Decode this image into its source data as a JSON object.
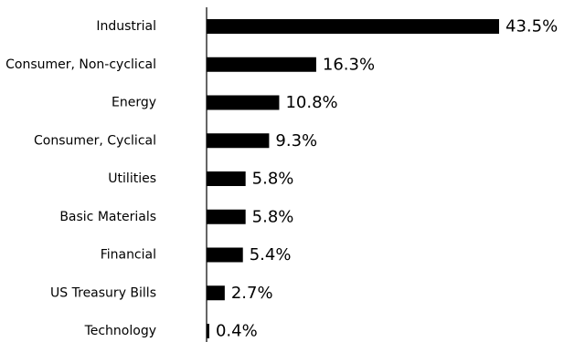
{
  "colors": {
    "bar": "#000000",
    "axis": "#000000",
    "text": "#000000",
    "background": "#ffffff"
  },
  "chart_data": {
    "type": "bar",
    "orientation": "horizontal",
    "categories": [
      "Industrial",
      "Consumer, Non-cyclical",
      "Energy",
      "Consumer, Cyclical",
      "Utilities",
      "Basic Materials",
      "Financial",
      "US Treasury Bills",
      "Technology"
    ],
    "values": [
      43.5,
      16.3,
      10.8,
      9.3,
      5.8,
      5.8,
      5.4,
      2.7,
      0.4
    ],
    "value_labels": [
      "43.5%",
      "16.3%",
      "10.8%",
      "9.3%",
      "5.8%",
      "5.8%",
      "5.4%",
      "2.7%",
      "0.4%"
    ],
    "unit": "%",
    "xlim": [
      0,
      43.5
    ],
    "grid": false,
    "legend": "none"
  }
}
